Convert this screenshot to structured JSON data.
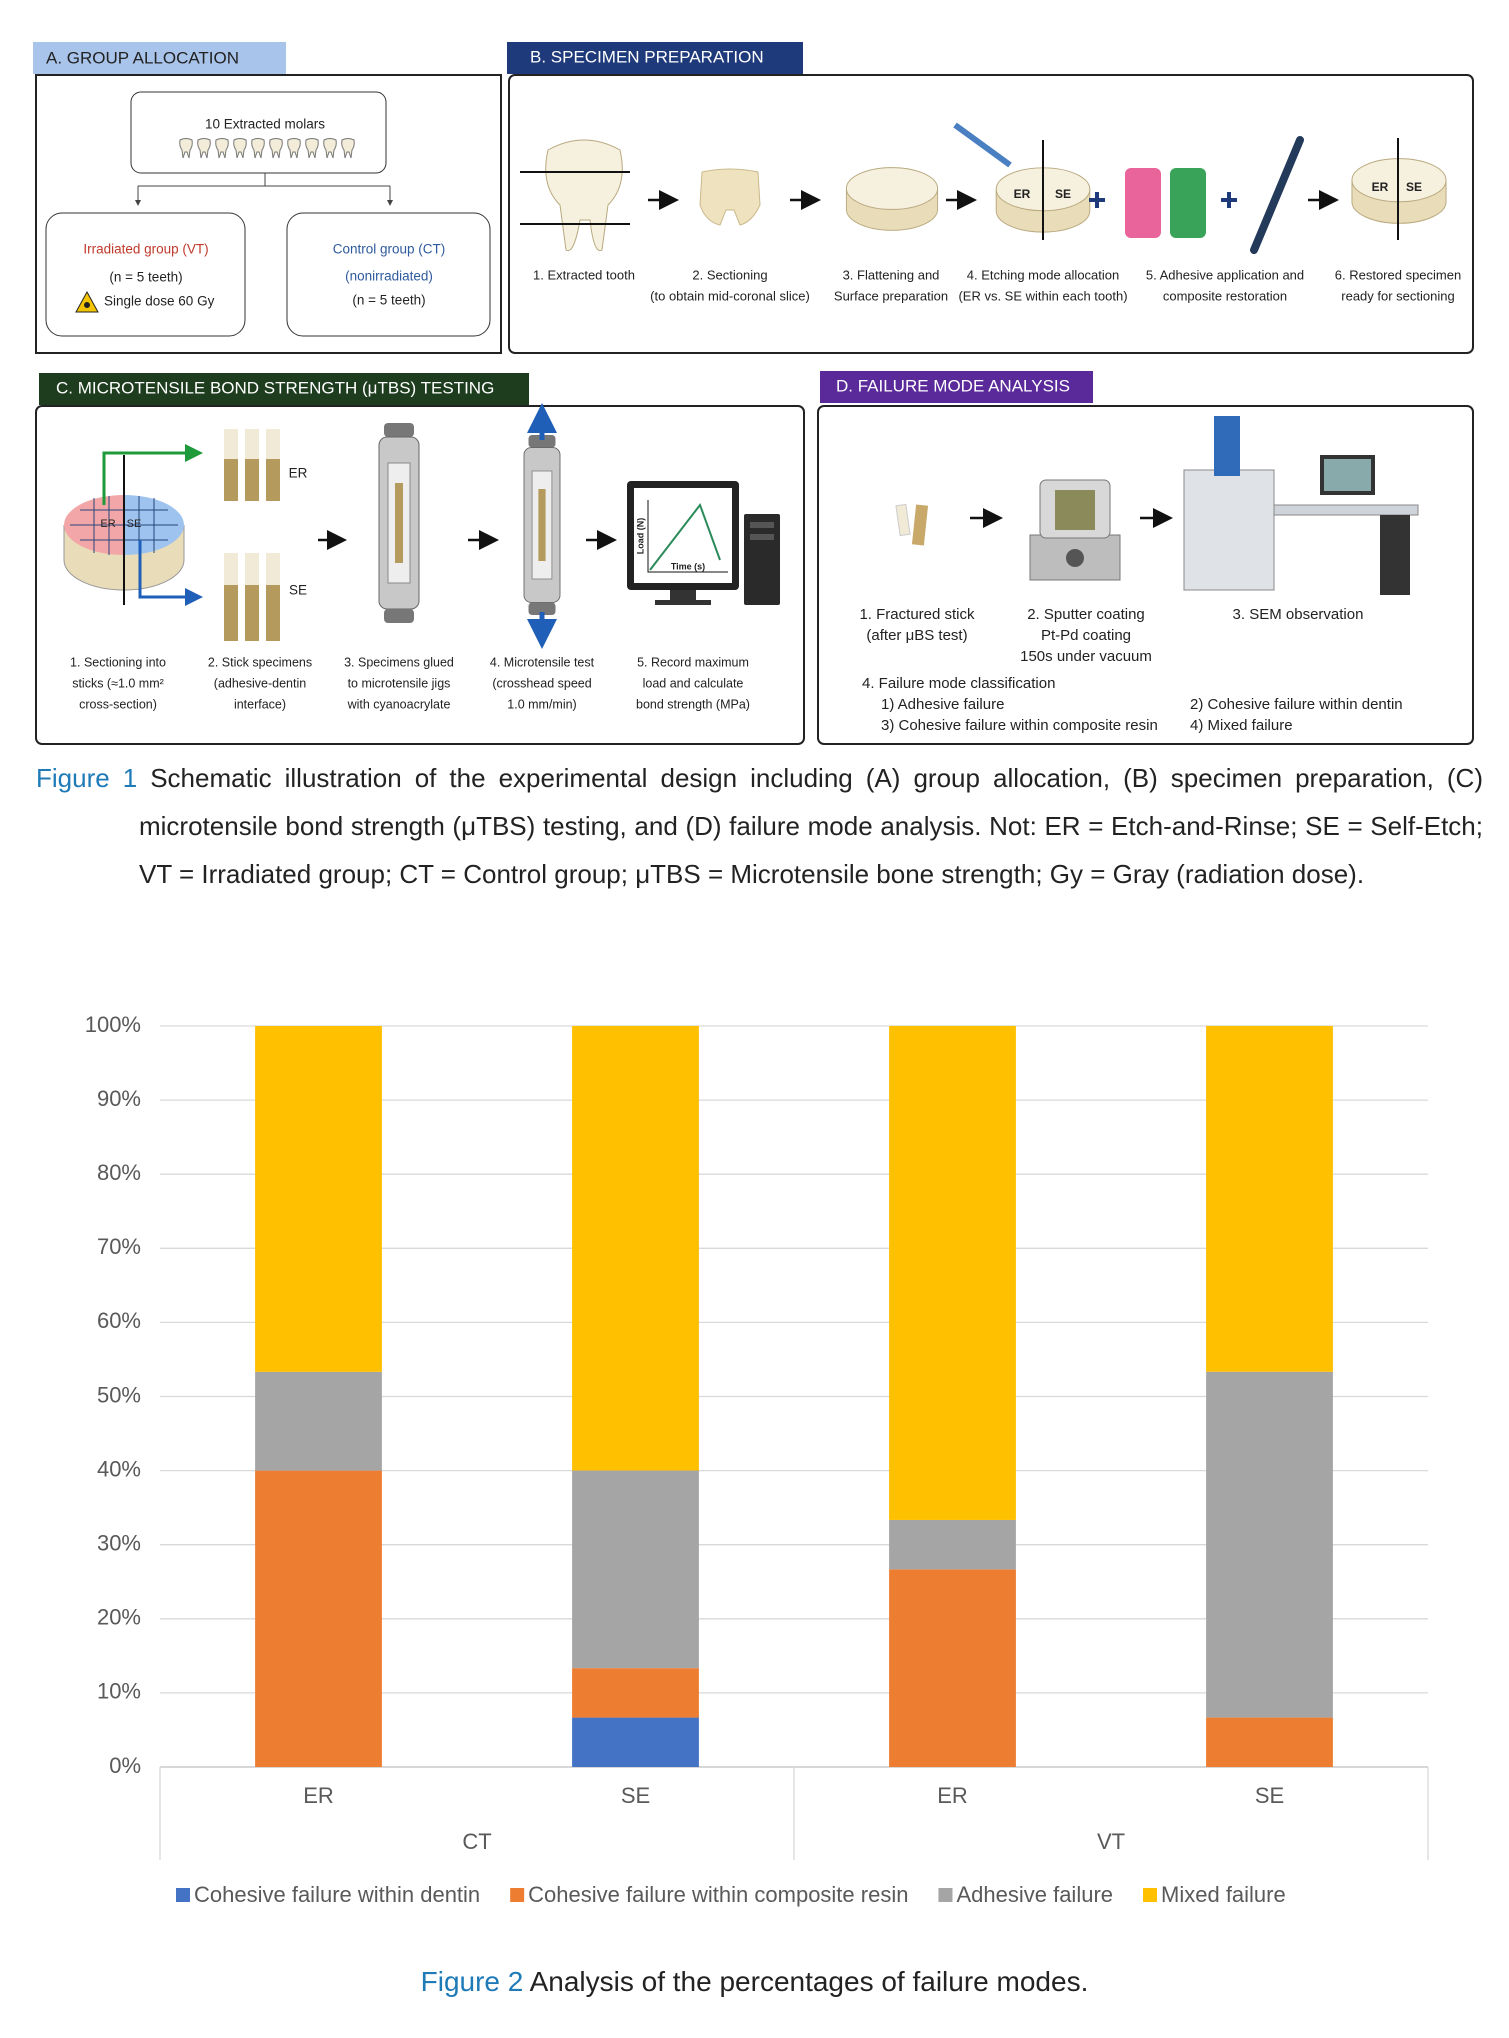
{
  "figure1": {
    "panel_a": {
      "title": "A. GROUP ALLOCATION",
      "source": "10 Extracted molars",
      "irradiated": {
        "name": "Irradiated group (VT)",
        "n": "(n = 5 teeth)",
        "dose": "Single dose 60 Gy"
      },
      "control": {
        "name": "Control group (CT)",
        "note": "(nonirradiated)",
        "n": "(n = 5 teeth)"
      }
    },
    "panel_b": {
      "title": "B. SPECIMEN PREPARATION",
      "disc_labels": [
        "ER",
        "SE"
      ],
      "steps": [
        {
          "lines": [
            "1. Extracted tooth"
          ]
        },
        {
          "lines": [
            "2. Sectioning",
            "(to obtain mid-coronal slice)"
          ]
        },
        {
          "lines": [
            "3. Flattening and",
            "Surface preparation"
          ]
        },
        {
          "lines": [
            "4. Etching mode allocation",
            "(ER vs. SE within each tooth)"
          ]
        },
        {
          "lines": [
            "5. Adhesive application and",
            "composite restoration"
          ]
        },
        {
          "lines": [
            "6. Restored specimen",
            "ready for sectioning"
          ]
        }
      ]
    },
    "panel_c": {
      "title": "C. MICROTENSILE BOND STRENGTH (μTBS) TESTING",
      "disc_labels": [
        "ER",
        "SE"
      ],
      "stick_labels": [
        "ER",
        "SE"
      ],
      "graph": {
        "y_label": "Load (N)",
        "x_label": "Time (s)"
      },
      "steps": [
        {
          "lines": [
            "1. Sectioning into",
            "sticks (≈1.0 mm²",
            "cross-section)"
          ]
        },
        {
          "lines": [
            "2. Stick specimens",
            "(adhesive-dentin",
            "interface)"
          ]
        },
        {
          "lines": [
            "3. Specimens glued",
            "to microtensile jigs",
            "with cyanoacrylate"
          ]
        },
        {
          "lines": [
            "4. Microtensile test",
            "(crosshead speed",
            "1.0 mm/min)"
          ]
        },
        {
          "lines": [
            "5. Record maximum",
            "load and calculate",
            "bond strength (MPa)"
          ]
        }
      ]
    },
    "panel_d": {
      "title": "D. FAILURE MODE ANALYSIS",
      "steps": [
        {
          "lines": [
            "1. Fractured stick",
            "(after μBS test)"
          ]
        },
        {
          "lines": [
            "2. Sputter coating",
            "Pt-Pd coating",
            "150s under vacuum"
          ]
        },
        {
          "lines": [
            "3. SEM observation"
          ]
        }
      ],
      "classification": {
        "title": "4. Failure mode classification",
        "items": [
          "1) Adhesive failure",
          "2) Cohesive failure within dentin",
          "3) Cohesive failure within composite resin",
          "4) Mixed failure"
        ]
      }
    },
    "caption": {
      "label": "Figure 1",
      "text": "Schematic illustration of the experimental design including (A) group allocation, (B) specimen preparation, (C) microtensile bond strength (μTBS) testing, and (D) failure mode analysis. Not: ER = Etch-and-Rinse; SE = Self-Etch; VT = Irradiated group; CT = Control group;  μTBS = Microtensile bone strength; Gy = Gray (radiation dose)."
    }
  },
  "chart_data": {
    "type": "stacked_bar",
    "groups": [
      {
        "name": "CT",
        "categories": [
          "ER",
          "SE"
        ]
      },
      {
        "name": "VT",
        "categories": [
          "ER",
          "SE"
        ]
      }
    ],
    "series": [
      {
        "name": "Cohesive failure within dentin",
        "color": "#4472c4",
        "values": [
          0,
          6.67,
          0,
          0
        ]
      },
      {
        "name": "Cohesive failure within composite resin",
        "color": "#ed7d31",
        "values": [
          40,
          6.67,
          26.67,
          6.67
        ]
      },
      {
        "name": "Adhesive failure",
        "color": "#a5a5a5",
        "values": [
          13.33,
          26.67,
          6.67,
          46.67
        ]
      },
      {
        "name": "Mixed failure",
        "color": "#ffc000",
        "values": [
          46.67,
          60,
          66.67,
          46.67
        ]
      }
    ],
    "ylim": [
      0,
      100
    ],
    "yticks": [
      {
        "value": 0,
        "label": "0%"
      },
      {
        "value": 10,
        "label": "10%"
      },
      {
        "value": 20,
        "label": "20%"
      },
      {
        "value": 30,
        "label": "30%"
      },
      {
        "value": 40,
        "label": "40%"
      },
      {
        "value": 50,
        "label": "50%"
      },
      {
        "value": 60,
        "label": "60%"
      },
      {
        "value": 70,
        "label": "70%"
      },
      {
        "value": 80,
        "label": "80%"
      },
      {
        "value": 90,
        "label": "90%"
      },
      {
        "value": 100,
        "label": "100%"
      }
    ],
    "grid": true,
    "legend": "bottom"
  },
  "figure2_caption": {
    "label": "Figure 2",
    "text": "Analysis of the percentages of failure modes."
  }
}
